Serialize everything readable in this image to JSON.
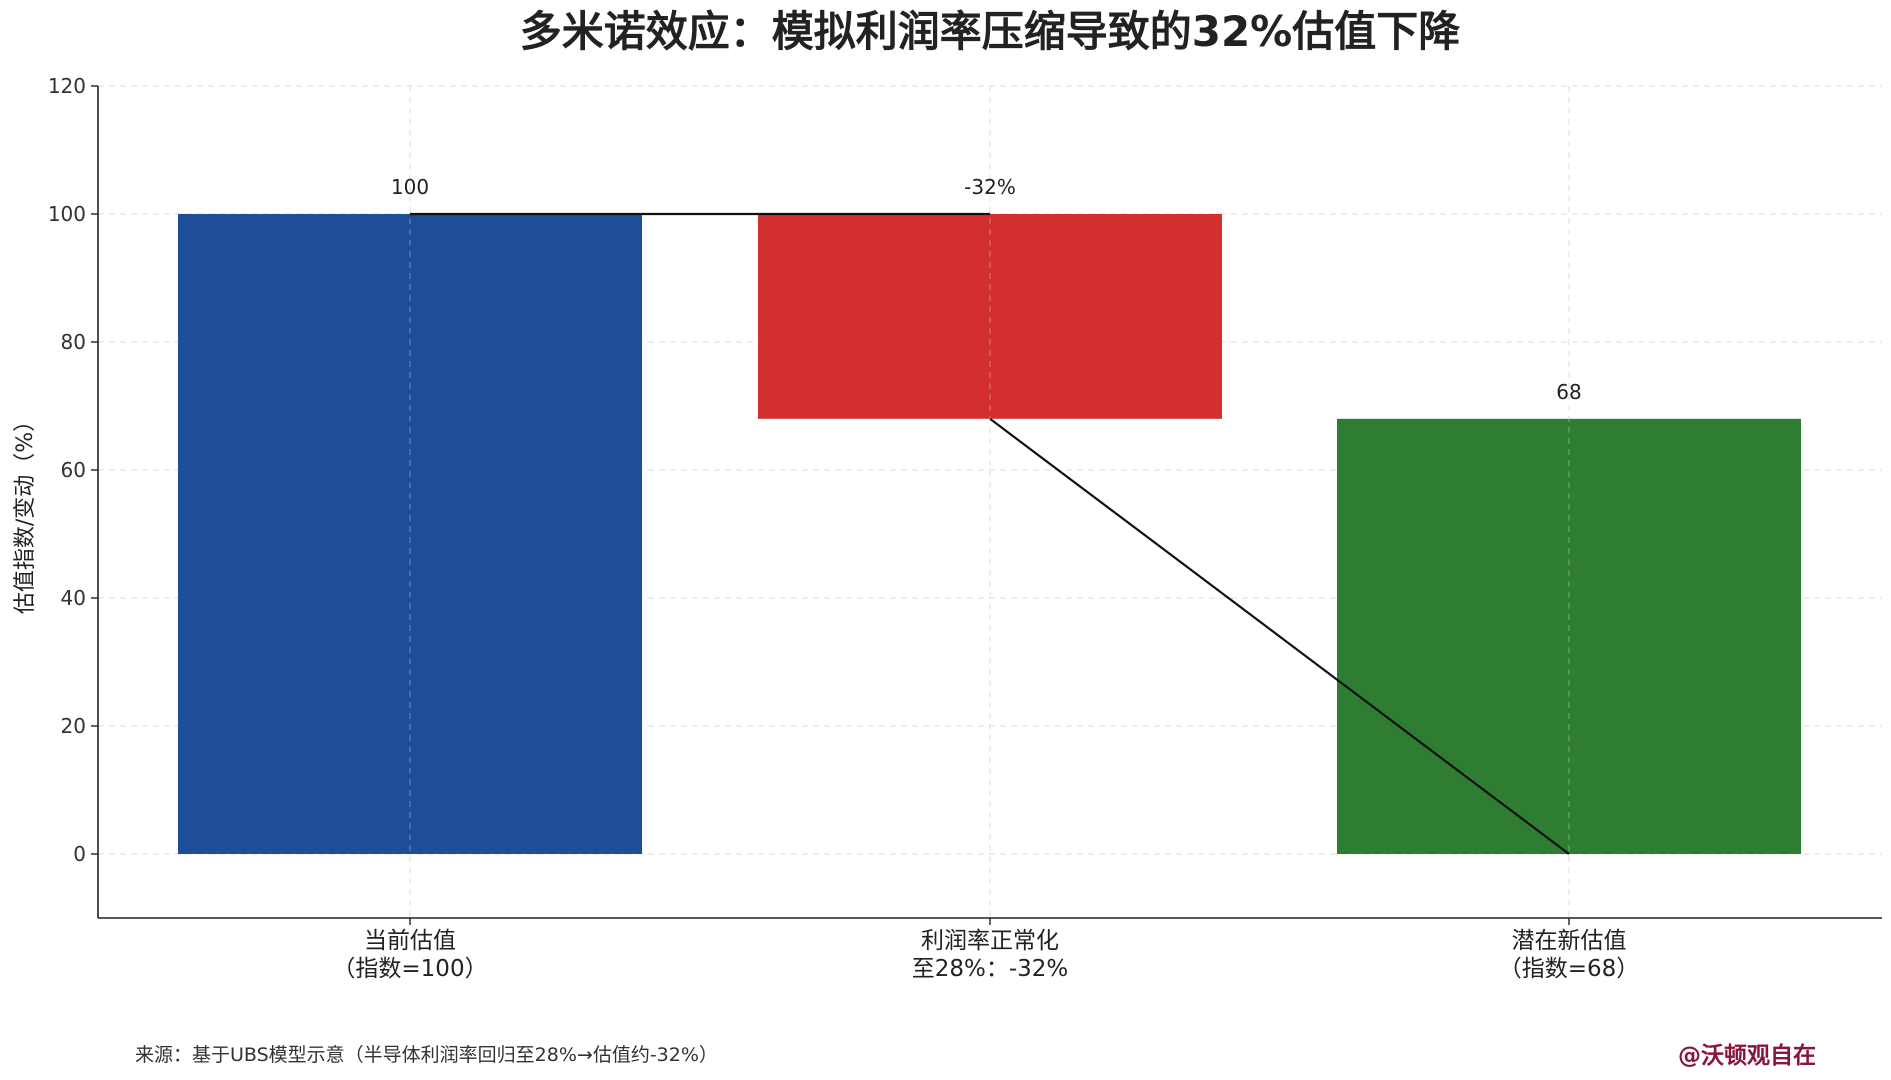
{
  "chart_data": {
    "type": "bar",
    "subtype": "waterfall",
    "title": "多米诺效应：模拟利润率压缩导致的32%估值下降",
    "ylabel": "估值指数/变动（%）",
    "xlabel": "",
    "ylim": [
      -10,
      120
    ],
    "yticks": [
      0,
      20,
      40,
      60,
      80,
      100,
      120
    ],
    "grid": true,
    "categories": [
      [
        "当前估值",
        "（指数=100）"
      ],
      [
        "利润率正常化",
        "至28%：-32%"
      ],
      [
        "潜在新估值",
        "（指数=68）"
      ]
    ],
    "bars": [
      {
        "bottom": 0,
        "top": 100,
        "label": "100",
        "color": "#1f4e99"
      },
      {
        "bottom": 68,
        "top": 100,
        "label": "-32%",
        "color": "#d32f2f"
      },
      {
        "bottom": 0,
        "top": 68,
        "label": "68",
        "color": "#2e7d32"
      }
    ],
    "connectors": [
      {
        "from": [
          0,
          100
        ],
        "to": [
          1,
          100
        ]
      },
      {
        "from": [
          1,
          68
        ],
        "to": [
          2,
          0
        ]
      }
    ]
  },
  "footer": {
    "source": "来源：基于UBS模型示意（半导体利润率回归至28%→估值约-32%）",
    "credit": "@沃顿观自在"
  }
}
